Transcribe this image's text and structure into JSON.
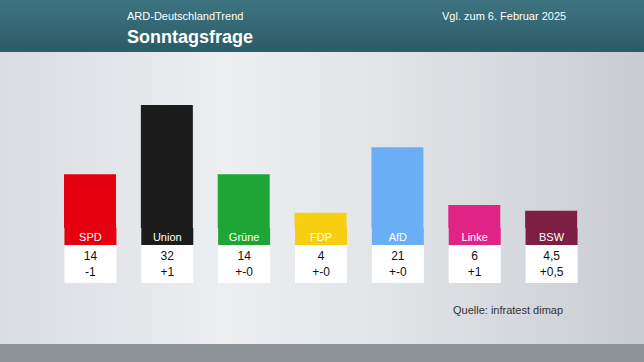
{
  "chart_data": {
    "type": "bar",
    "subtitle": "ARD-DeutschlandTrend",
    "title": "Sonntagsfrage",
    "annotations": [
      "Vgl. zum 6. Februar 2025",
      "Quelle: infratest dimap"
    ],
    "categories": [
      "SPD",
      "Union",
      "Grüne",
      "FDP",
      "AfD",
      "Linke",
      "BSW"
    ],
    "values": [
      14,
      32,
      14,
      4,
      21,
      6,
      4.5
    ],
    "value_labels": [
      "14",
      "32",
      "14",
      "4",
      "21",
      "6",
      "4,5"
    ],
    "change_labels": [
      "-1",
      "+1",
      "+-0",
      "+-0",
      "+-0",
      "+1",
      "+0,5"
    ],
    "colors": [
      "#e3000f",
      "#1c1c1c",
      "#1ea535",
      "#f8cf10",
      "#6aaef5",
      "#df2486",
      "#7d1f42"
    ],
    "ylim": [
      0,
      32
    ],
    "data_labels": true,
    "tick_labels": "x",
    "grid": false
  }
}
